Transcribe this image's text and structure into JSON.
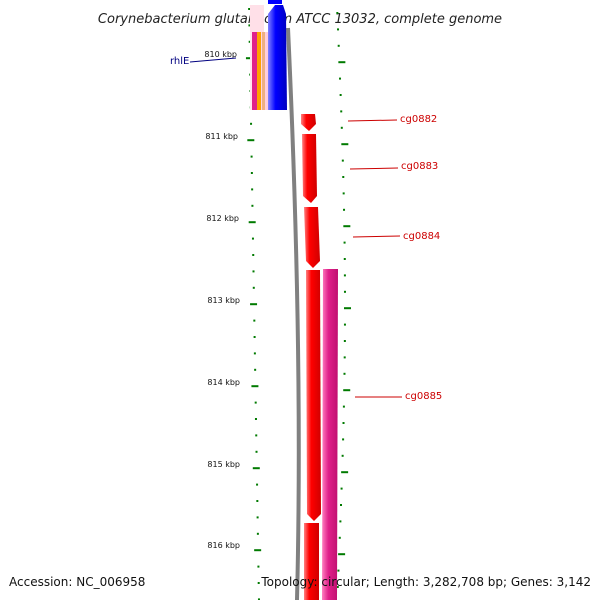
{
  "title": "Corynebacterium glutamicum ATCC 13032, complete genome",
  "ruler": {
    "labels": [
      "810 kbp",
      "811 kbp",
      "812 kbp",
      "813 kbp",
      "814 kbp",
      "815 kbp",
      "816 kbp"
    ]
  },
  "genes": [
    {
      "name": "rhlE",
      "color": "#000080"
    },
    {
      "name": "cg0882",
      "color": "#cc0000"
    },
    {
      "name": "cg0883",
      "color": "#cc0000"
    },
    {
      "name": "cg0884",
      "color": "#cc0000"
    },
    {
      "name": "cg0885",
      "color": "#cc0000"
    }
  ],
  "colors": {
    "forward_cds": "#ff0000",
    "reverse_cds": "#0000ff",
    "magenta_track": "#e0208a",
    "ticks": "#007a00",
    "backbone": "#808080"
  },
  "footer": {
    "accession": "Accession: NC_006958",
    "topology": "Topology: circular; Length: 3,282,708 bp; Genes: 3,142"
  }
}
